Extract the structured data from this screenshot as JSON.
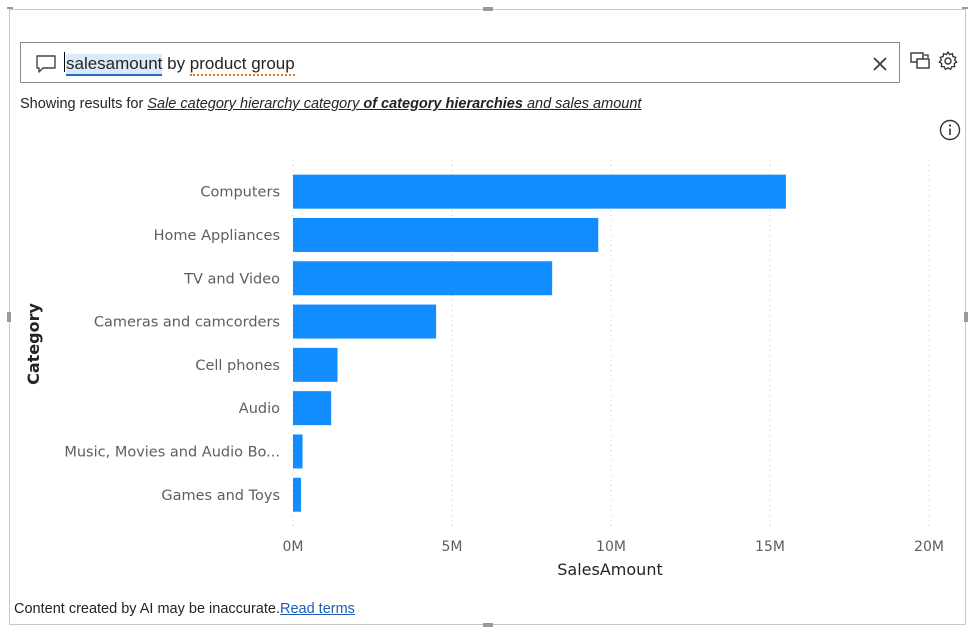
{
  "search": {
    "word1": "salesamount",
    "word2": " by ",
    "word3": "product group"
  },
  "showing": {
    "prefix": "Showing results for ",
    "part1": "Sale category hierarchy category ",
    "part2": "of category hierarchies",
    "part3": " and sales amount"
  },
  "icons": {
    "chat": "chat-bubble-icon",
    "clear": "close-icon",
    "convert": "convert-visual-icon",
    "settings": "gear-icon",
    "info": "info-icon"
  },
  "footer": {
    "text": "Content created by AI may be inaccurate.",
    "link": "Read terms"
  },
  "chart_data": {
    "type": "bar",
    "orientation": "horizontal",
    "categories": [
      "Computers",
      "Home Appliances",
      "TV and Video",
      "Cameras and camcorders",
      "Cell phones",
      "Audio",
      "Music, Movies and Audio Bo...",
      "Games and Toys"
    ],
    "values": [
      15.5,
      9.6,
      8.15,
      4.5,
      1.4,
      1.2,
      0.3,
      0.25
    ],
    "value_unit": "M",
    "xlabel": "SalesAmount",
    "ylabel": "Category",
    "xlim": [
      0,
      20
    ],
    "xticks": [
      "0M",
      "5M",
      "10M",
      "15M",
      "20M"
    ],
    "grid": "vertical dotted",
    "bar_color": "#118DFF"
  }
}
